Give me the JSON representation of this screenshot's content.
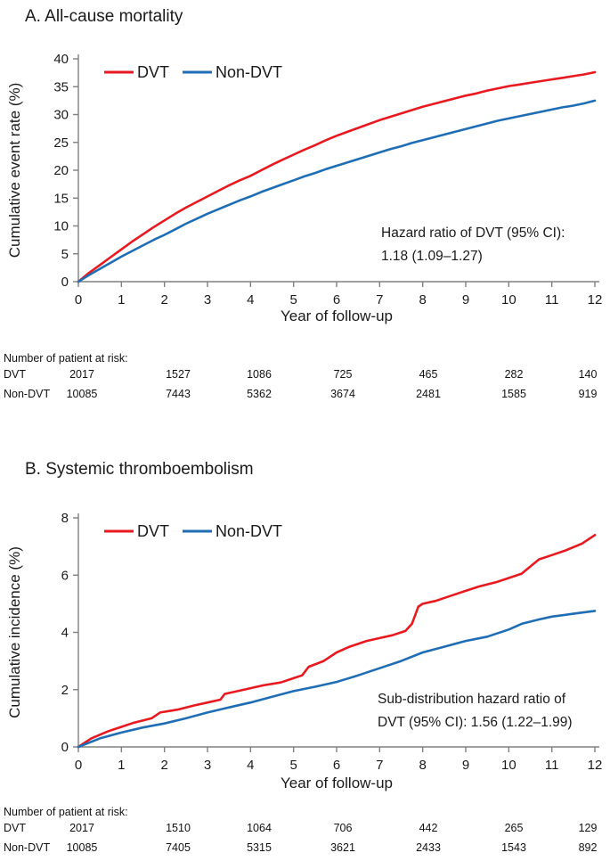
{
  "colors": {
    "dvt": "#e8191f",
    "non_dvt": "#1f6eb5",
    "axis": "#808080",
    "text": "#1a1a1a"
  },
  "chart_data": [
    {
      "type": "line",
      "title": "A. All-cause mortality",
      "xlabel": "Year of follow-up",
      "ylabel": "Cumulative event rate (%)",
      "xlim": [
        0,
        12
      ],
      "ylim": [
        0,
        40
      ],
      "xticks": [
        0,
        1,
        2,
        3,
        4,
        5,
        6,
        7,
        8,
        9,
        10,
        11,
        12
      ],
      "yticks": [
        0,
        5,
        10,
        15,
        20,
        25,
        30,
        35,
        40
      ],
      "grid": false,
      "legend_position": "top-left-inside",
      "legend": [
        {
          "label": "DVT",
          "color_key": "dvt"
        },
        {
          "label": "Non-DVT",
          "color_key": "non_dvt"
        }
      ],
      "annotation": {
        "lines": [
          "Hazard ratio of DVT  (95% CI):",
          "1.18 (1.09–1.27)"
        ]
      },
      "series": [
        {
          "name": "DVT",
          "color_key": "dvt",
          "points": [
            [
              0,
              0
            ],
            [
              0.25,
              1.6
            ],
            [
              0.5,
              3.0
            ],
            [
              0.75,
              4.4
            ],
            [
              1,
              5.8
            ],
            [
              1.25,
              7.2
            ],
            [
              1.5,
              8.5
            ],
            [
              1.75,
              9.8
            ],
            [
              2,
              11.0
            ],
            [
              2.25,
              12.2
            ],
            [
              2.5,
              13.3
            ],
            [
              2.75,
              14.3
            ],
            [
              3,
              15.3
            ],
            [
              3.25,
              16.3
            ],
            [
              3.5,
              17.3
            ],
            [
              3.75,
              18.2
            ],
            [
              4,
              19.0
            ],
            [
              4.25,
              20.0
            ],
            [
              4.5,
              21.0
            ],
            [
              4.75,
              21.9
            ],
            [
              5,
              22.8
            ],
            [
              5.25,
              23.7
            ],
            [
              5.5,
              24.5
            ],
            [
              5.75,
              25.4
            ],
            [
              6,
              26.2
            ],
            [
              6.25,
              26.9
            ],
            [
              6.5,
              27.6
            ],
            [
              6.75,
              28.3
            ],
            [
              7,
              29.0
            ],
            [
              7.25,
              29.6
            ],
            [
              7.5,
              30.2
            ],
            [
              7.75,
              30.8
            ],
            [
              8,
              31.4
            ],
            [
              8.25,
              31.9
            ],
            [
              8.5,
              32.4
            ],
            [
              8.75,
              32.9
            ],
            [
              9,
              33.4
            ],
            [
              9.25,
              33.8
            ],
            [
              9.5,
              34.3
            ],
            [
              9.75,
              34.7
            ],
            [
              10,
              35.1
            ],
            [
              10.25,
              35.4
            ],
            [
              10.5,
              35.7
            ],
            [
              10.75,
              36.0
            ],
            [
              11,
              36.3
            ],
            [
              11.25,
              36.6
            ],
            [
              11.5,
              36.9
            ],
            [
              11.75,
              37.2
            ],
            [
              12,
              37.6
            ]
          ]
        },
        {
          "name": "Non-DVT",
          "color_key": "non_dvt",
          "points": [
            [
              0,
              0
            ],
            [
              0.25,
              1.2
            ],
            [
              0.5,
              2.3
            ],
            [
              0.75,
              3.4
            ],
            [
              1,
              4.5
            ],
            [
              1.25,
              5.5
            ],
            [
              1.5,
              6.5
            ],
            [
              1.75,
              7.5
            ],
            [
              2,
              8.4
            ],
            [
              2.25,
              9.4
            ],
            [
              2.5,
              10.4
            ],
            [
              2.75,
              11.3
            ],
            [
              3,
              12.2
            ],
            [
              3.25,
              13.0
            ],
            [
              3.5,
              13.8
            ],
            [
              3.75,
              14.6
            ],
            [
              4,
              15.3
            ],
            [
              4.25,
              16.1
            ],
            [
              4.5,
              16.8
            ],
            [
              4.75,
              17.5
            ],
            [
              5,
              18.2
            ],
            [
              5.25,
              18.9
            ],
            [
              5.5,
              19.5
            ],
            [
              5.75,
              20.2
            ],
            [
              6,
              20.8
            ],
            [
              6.25,
              21.4
            ],
            [
              6.5,
              22.0
            ],
            [
              6.75,
              22.6
            ],
            [
              7,
              23.2
            ],
            [
              7.25,
              23.8
            ],
            [
              7.5,
              24.3
            ],
            [
              7.75,
              24.9
            ],
            [
              8,
              25.4
            ],
            [
              8.25,
              25.9
            ],
            [
              8.5,
              26.4
            ],
            [
              8.75,
              26.9
            ],
            [
              9,
              27.4
            ],
            [
              9.25,
              27.9
            ],
            [
              9.5,
              28.4
            ],
            [
              9.75,
              28.9
            ],
            [
              10,
              29.3
            ],
            [
              10.25,
              29.7
            ],
            [
              10.5,
              30.1
            ],
            [
              10.75,
              30.5
            ],
            [
              11,
              30.9
            ],
            [
              11.25,
              31.3
            ],
            [
              11.5,
              31.6
            ],
            [
              11.75,
              32.0
            ],
            [
              12,
              32.5
            ]
          ]
        }
      ],
      "risk_table": {
        "heading": "Number of patient at risk:",
        "rows": [
          {
            "label": "DVT",
            "values": [
              "2017",
              "1527",
              "1086",
              "725",
              "465",
              "282",
              "140"
            ]
          },
          {
            "label": "Non-DVT",
            "values": [
              "10085",
              "7443",
              "5362",
              "3674",
              "2481",
              "1585",
              "919"
            ]
          }
        ]
      }
    },
    {
      "type": "line",
      "title": "B. Systemic thromboembolism",
      "xlabel": "Year of follow-up",
      "ylabel": "Cumulative incidence (%)",
      "xlim": [
        0,
        12
      ],
      "ylim": [
        0,
        8
      ],
      "xticks": [
        0,
        1,
        2,
        3,
        4,
        5,
        6,
        7,
        8,
        9,
        10,
        11,
        12
      ],
      "yticks": [
        0,
        2,
        4,
        6,
        8
      ],
      "grid": false,
      "legend_position": "top-left-inside",
      "legend": [
        {
          "label": "DVT",
          "color_key": "dvt"
        },
        {
          "label": "Non-DVT",
          "color_key": "non_dvt"
        }
      ],
      "annotation": {
        "lines": [
          "Sub-distribution hazard ratio of",
          "DVT  (95% CI): 1.56 (1.22–1.99)"
        ]
      },
      "series": [
        {
          "name": "DVT",
          "color_key": "dvt",
          "points": [
            [
              0,
              0
            ],
            [
              0.3,
              0.3
            ],
            [
              0.7,
              0.55
            ],
            [
              1,
              0.7
            ],
            [
              1.3,
              0.85
            ],
            [
              1.7,
              1.0
            ],
            [
              1.9,
              1.2
            ],
            [
              2.3,
              1.3
            ],
            [
              2.7,
              1.45
            ],
            [
              3,
              1.55
            ],
            [
              3.3,
              1.65
            ],
            [
              3.4,
              1.85
            ],
            [
              3.7,
              1.95
            ],
            [
              4,
              2.05
            ],
            [
              4.3,
              2.15
            ],
            [
              4.7,
              2.25
            ],
            [
              5,
              2.4
            ],
            [
              5.2,
              2.5
            ],
            [
              5.35,
              2.8
            ],
            [
              5.7,
              3.0
            ],
            [
              6,
              3.3
            ],
            [
              6.3,
              3.5
            ],
            [
              6.7,
              3.7
            ],
            [
              7,
              3.8
            ],
            [
              7.3,
              3.9
            ],
            [
              7.6,
              4.05
            ],
            [
              7.75,
              4.3
            ],
            [
              7.9,
              4.9
            ],
            [
              8,
              5.0
            ],
            [
              8.3,
              5.1
            ],
            [
              8.7,
              5.3
            ],
            [
              9,
              5.45
            ],
            [
              9.3,
              5.6
            ],
            [
              9.7,
              5.75
            ],
            [
              10,
              5.9
            ],
            [
              10.3,
              6.05
            ],
            [
              10.5,
              6.3
            ],
            [
              10.7,
              6.55
            ],
            [
              11,
              6.7
            ],
            [
              11.3,
              6.85
            ],
            [
              11.7,
              7.1
            ],
            [
              12,
              7.4
            ]
          ]
        },
        {
          "name": "Non-DVT",
          "color_key": "non_dvt",
          "points": [
            [
              0,
              0
            ],
            [
              0.5,
              0.3
            ],
            [
              1,
              0.5
            ],
            [
              1.5,
              0.68
            ],
            [
              2,
              0.82
            ],
            [
              2.5,
              1.0
            ],
            [
              3,
              1.2
            ],
            [
              3.5,
              1.38
            ],
            [
              4,
              1.55
            ],
            [
              4.5,
              1.75
            ],
            [
              5,
              1.95
            ],
            [
              5.5,
              2.1
            ],
            [
              6,
              2.27
            ],
            [
              6.5,
              2.5
            ],
            [
              7,
              2.75
            ],
            [
              7.5,
              3.0
            ],
            [
              8,
              3.3
            ],
            [
              8.5,
              3.5
            ],
            [
              9,
              3.7
            ],
            [
              9.5,
              3.85
            ],
            [
              10,
              4.1
            ],
            [
              10.3,
              4.3
            ],
            [
              10.7,
              4.45
            ],
            [
              11,
              4.55
            ],
            [
              11.5,
              4.65
            ],
            [
              12,
              4.75
            ]
          ]
        }
      ],
      "risk_table": {
        "heading": "Number of patient at risk:",
        "rows": [
          {
            "label": "DVT",
            "values": [
              "2017",
              "1510",
              "1064",
              "706",
              "442",
              "265",
              "129"
            ]
          },
          {
            "label": "Non-DVT",
            "values": [
              "10085",
              "7405",
              "5315",
              "3621",
              "2433",
              "1543",
              "892"
            ]
          }
        ]
      }
    }
  ]
}
